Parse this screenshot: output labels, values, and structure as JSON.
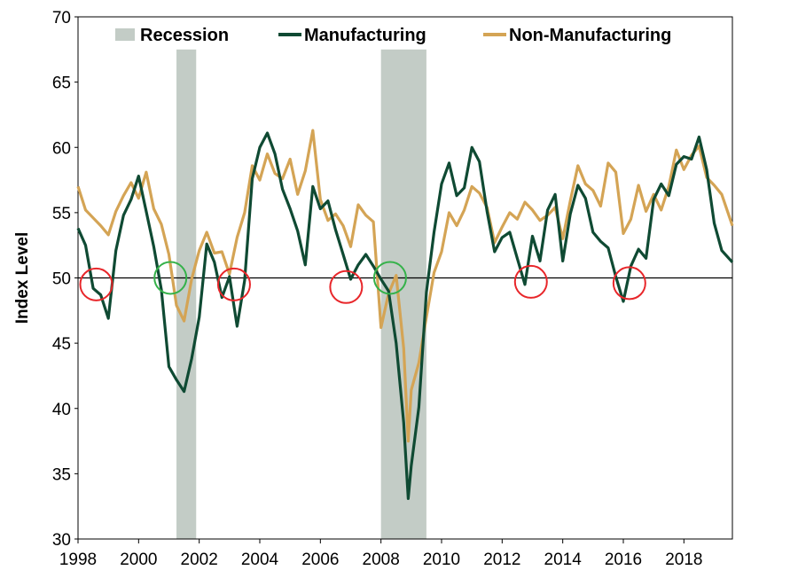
{
  "chart_data": {
    "type": "line",
    "title": "",
    "xlabel": "",
    "ylabel": "Index Level",
    "xlim": [
      1998.0,
      2019.6
    ],
    "ylim": [
      30,
      70
    ],
    "grid": false,
    "legend_position": "top",
    "x_ticks": [
      1998,
      2000,
      2002,
      2004,
      2006,
      2008,
      2010,
      2012,
      2014,
      2016,
      2018
    ],
    "x_tick_labels": [
      "1998",
      "2000",
      "2002",
      "2004",
      "2006",
      "2008",
      "2010",
      "2012",
      "2014",
      "2016",
      "2018"
    ],
    "y_ticks": [
      30,
      35,
      40,
      45,
      50,
      55,
      60,
      65,
      70
    ],
    "y_tick_labels": [
      "30",
      "35",
      "40",
      "45",
      "50",
      "55",
      "60",
      "65",
      "70"
    ],
    "reference_line": 50,
    "recessions": [
      {
        "start": 2001.25,
        "end": 2001.9
      },
      {
        "start": 2008.0,
        "end": 2009.5
      }
    ],
    "legend": [
      {
        "label": "Recession",
        "kind": "band",
        "color": "#c3ccc6"
      },
      {
        "label": "Manufacturing",
        "kind": "line",
        "color": "#0f4a33"
      },
      {
        "label": "Non-Manufacturing",
        "kind": "line",
        "color": "#d4a455"
      }
    ],
    "series": [
      {
        "name": "Manufacturing",
        "color": "#0f4a33",
        "x": [
          1998.0,
          1998.25,
          1998.5,
          1998.75,
          1999.0,
          1999.25,
          1999.5,
          1999.75,
          2000.0,
          2000.25,
          2000.5,
          2000.75,
          2001.0,
          2001.25,
          2001.5,
          2001.75,
          2002.0,
          2002.25,
          2002.5,
          2002.75,
          2003.0,
          2003.25,
          2003.5,
          2003.75,
          2004.0,
          2004.25,
          2004.5,
          2004.75,
          2005.0,
          2005.25,
          2005.5,
          2005.75,
          2006.0,
          2006.25,
          2006.5,
          2006.75,
          2007.0,
          2007.25,
          2007.5,
          2007.75,
          2008.0,
          2008.25,
          2008.5,
          2008.75,
          2008.9,
          2009.0,
          2009.25,
          2009.5,
          2009.75,
          2010.0,
          2010.25,
          2010.5,
          2010.75,
          2011.0,
          2011.25,
          2011.5,
          2011.75,
          2012.0,
          2012.25,
          2012.5,
          2012.75,
          2013.0,
          2013.25,
          2013.5,
          2013.75,
          2014.0,
          2014.25,
          2014.5,
          2014.75,
          2015.0,
          2015.25,
          2015.5,
          2015.75,
          2016.0,
          2016.25,
          2016.5,
          2016.75,
          2017.0,
          2017.25,
          2017.5,
          2017.75,
          2018.0,
          2018.25,
          2018.5,
          2018.75,
          2019.0,
          2019.25,
          2019.6
        ],
        "values": [
          53.8,
          52.5,
          49.2,
          48.7,
          46.9,
          52.1,
          54.8,
          56.0,
          57.8,
          55.1,
          52.4,
          49.1,
          43.2,
          42.2,
          41.3,
          43.8,
          47.0,
          52.6,
          51.2,
          48.5,
          50.1,
          46.3,
          49.8,
          57.6,
          60.0,
          61.1,
          59.5,
          56.8,
          55.3,
          53.6,
          51.0,
          57.0,
          55.3,
          55.9,
          53.7,
          51.8,
          49.9,
          51.0,
          51.8,
          50.9,
          49.9,
          49.0,
          45.0,
          38.9,
          33.1,
          35.6,
          40.1,
          48.9,
          53.5,
          57.2,
          58.8,
          56.3,
          56.9,
          60.0,
          58.9,
          55.1,
          52.0,
          53.1,
          53.5,
          51.5,
          49.5,
          53.2,
          51.3,
          55.2,
          56.4,
          51.3,
          54.9,
          57.1,
          56.1,
          53.5,
          52.8,
          52.3,
          50.1,
          48.2,
          50.9,
          52.2,
          51.5,
          56.0,
          57.2,
          56.3,
          58.7,
          59.3,
          59.1,
          60.8,
          58.3,
          54.2,
          52.1,
          51.2
        ]
      },
      {
        "name": "Non-Manufacturing",
        "color": "#d4a455",
        "x": [
          1998.0,
          1998.25,
          1998.5,
          1998.75,
          1999.0,
          1999.25,
          1999.5,
          1999.75,
          2000.0,
          2000.25,
          2000.5,
          2000.75,
          2001.0,
          2001.25,
          2001.5,
          2001.75,
          2002.0,
          2002.25,
          2002.5,
          2002.75,
          2003.0,
          2003.25,
          2003.5,
          2003.75,
          2004.0,
          2004.25,
          2004.5,
          2004.75,
          2005.0,
          2005.25,
          2005.5,
          2005.75,
          2006.0,
          2006.25,
          2006.5,
          2006.75,
          2007.0,
          2007.25,
          2007.5,
          2007.75,
          2008.0,
          2008.25,
          2008.5,
          2008.75,
          2008.9,
          2009.0,
          2009.25,
          2009.5,
          2009.75,
          2010.0,
          2010.25,
          2010.5,
          2010.75,
          2011.0,
          2011.25,
          2011.5,
          2011.75,
          2012.0,
          2012.25,
          2012.5,
          2012.75,
          2013.0,
          2013.25,
          2013.5,
          2013.75,
          2014.0,
          2014.25,
          2014.5,
          2014.75,
          2015.0,
          2015.25,
          2015.5,
          2015.75,
          2016.0,
          2016.25,
          2016.5,
          2016.75,
          2017.0,
          2017.25,
          2017.5,
          2017.75,
          2018.0,
          2018.25,
          2018.5,
          2018.75,
          2019.0,
          2019.25,
          2019.6
        ],
        "values": [
          57.0,
          55.2,
          54.6,
          54.0,
          53.3,
          55.1,
          56.3,
          57.3,
          56.1,
          58.1,
          55.3,
          54.1,
          51.8,
          47.9,
          46.7,
          49.9,
          52.1,
          53.5,
          51.9,
          52.0,
          50.3,
          53.1,
          55.0,
          58.6,
          57.5,
          59.5,
          58.0,
          57.6,
          59.1,
          56.4,
          58.2,
          61.3,
          56.0,
          54.4,
          54.9,
          54.0,
          52.4,
          55.6,
          54.8,
          54.3,
          46.2,
          48.8,
          50.2,
          44.6,
          37.5,
          41.4,
          43.5,
          47.0,
          50.4,
          52.0,
          55.0,
          54.0,
          55.2,
          57.0,
          56.5,
          55.4,
          52.7,
          53.9,
          55.0,
          54.5,
          55.8,
          55.2,
          54.4,
          54.8,
          55.4,
          53.0,
          55.9,
          58.6,
          57.2,
          56.7,
          55.5,
          58.8,
          58.1,
          53.4,
          54.5,
          57.1,
          55.1,
          56.4,
          55.2,
          57.0,
          59.8,
          58.3,
          59.4,
          60.1,
          57.7,
          57.1,
          56.4,
          54.0
        ]
      }
    ],
    "annotations": [
      {
        "kind": "circle",
        "color": "red",
        "x": 1998.6,
        "y": 49.5
      },
      {
        "kind": "circle",
        "color": "green",
        "x": 2001.05,
        "y": 50.0
      },
      {
        "kind": "circle",
        "color": "red",
        "x": 2003.15,
        "y": 49.5
      },
      {
        "kind": "circle",
        "color": "red",
        "x": 2006.85,
        "y": 49.3
      },
      {
        "kind": "circle",
        "color": "green",
        "x": 2008.3,
        "y": 50.0
      },
      {
        "kind": "circle",
        "color": "red",
        "x": 2012.95,
        "y": 49.7
      },
      {
        "kind": "circle",
        "color": "red",
        "x": 2016.2,
        "y": 49.6
      }
    ]
  }
}
